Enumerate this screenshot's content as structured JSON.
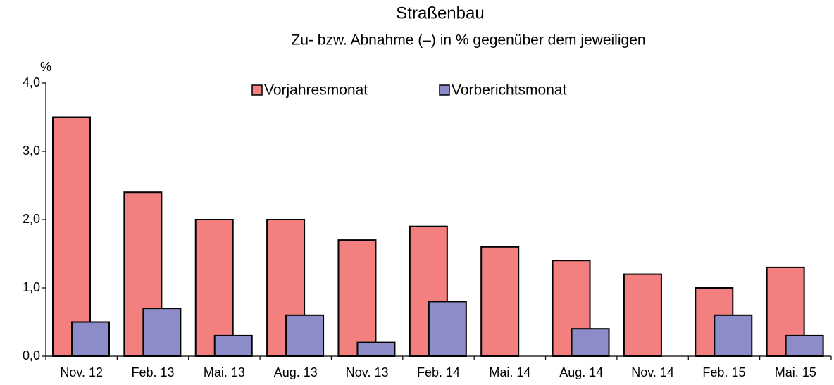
{
  "chart_data": {
    "type": "bar",
    "title": "Straßenbau",
    "subtitle": "Zu- bzw. Abnahme (–) in % gegenüber dem jeweiligen",
    "y_label": "%",
    "categories": [
      "Nov. 12",
      "Feb. 13",
      "Mai. 13",
      "Aug. 13",
      "Nov. 13",
      "Feb. 14",
      "Mai. 14",
      "Aug. 14",
      "Nov. 14",
      "Feb. 15",
      "Mai. 15"
    ],
    "series": [
      {
        "name": "Vorjahresmonat",
        "color": "#f47f7f",
        "values": [
          3.5,
          2.4,
          2.0,
          2.0,
          1.7,
          1.9,
          1.6,
          1.4,
          1.2,
          1.0,
          1.3
        ]
      },
      {
        "name": "Vorberichtsmonat",
        "color": "#8c8cc8",
        "values": [
          0.5,
          0.7,
          0.3,
          0.6,
          0.2,
          0.8,
          null,
          0.4,
          null,
          0.6,
          0.3
        ]
      }
    ],
    "ylim": [
      0,
      4
    ],
    "yticks": [
      {
        "value": 0,
        "label": "0,0"
      },
      {
        "value": 1,
        "label": "1,0"
      },
      {
        "value": 2,
        "label": "2,0"
      },
      {
        "value": 3,
        "label": "3,0"
      },
      {
        "value": 4,
        "label": "4,0"
      }
    ],
    "grid": false
  }
}
